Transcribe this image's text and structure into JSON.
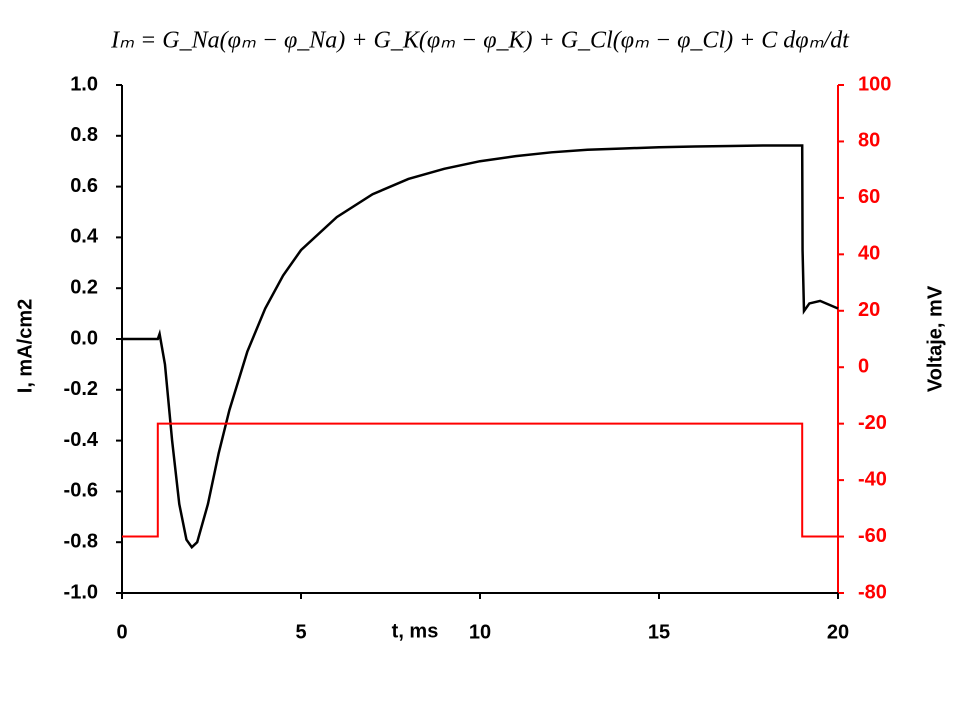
{
  "chart_data": {
    "type": "line",
    "title": "Iₘ = G_Na(φₘ − φ_Na) + G_K(φₘ − φ_K) + G_Cl(φₘ − φ_Cl) + C dφₘ/dt",
    "x_label": "t, ms",
    "y_label": "I, mA/cm2",
    "y2_label": "Voltaje, mV",
    "xlim": [
      0,
      20
    ],
    "xticks": [
      0,
      5,
      10,
      15,
      20
    ],
    "ylim": [
      -1,
      1
    ],
    "yticks": [
      {
        "value": -1,
        "label": "-1.0"
      },
      -0.8,
      -0.6,
      -0.4,
      -0.2,
      {
        "value": 0,
        "label": "0.0"
      },
      0.2,
      0.4,
      0.6,
      0.8,
      {
        "value": 1,
        "label": "1.0"
      }
    ],
    "y2lim": [
      -80,
      100
    ],
    "y2ticks": [
      -80,
      -60,
      -40,
      -20,
      0,
      20,
      40,
      60,
      80,
      100
    ],
    "y_axis_color": "#000000",
    "y2_axis_color": "#ff0000",
    "series": [
      {
        "name": "I",
        "color": "#000000",
        "x": [
          0,
          0.5,
          1.0,
          1.05,
          1.2,
          1.4,
          1.6,
          1.8,
          1.95,
          2.1,
          2.4,
          2.7,
          3.0,
          3.5,
          4,
          4.5,
          5,
          6,
          7,
          8,
          9,
          10,
          11,
          12,
          13,
          14,
          15,
          16,
          17,
          18,
          19,
          19.01,
          19.05,
          19.2,
          19.5,
          20
        ],
        "values": [
          0,
          0,
          0,
          0.02,
          -0.1,
          -0.4,
          -0.65,
          -0.79,
          -0.82,
          -0.8,
          -0.65,
          -0.45,
          -0.28,
          -0.05,
          0.12,
          0.25,
          0.35,
          0.48,
          0.57,
          0.63,
          0.67,
          0.7,
          0.72,
          0.735,
          0.745,
          0.75,
          0.755,
          0.758,
          0.76,
          0.762,
          0.762,
          0.35,
          0.11,
          0.14,
          0.15,
          0.12
        ]
      },
      {
        "name": "V",
        "color": "#ff0000",
        "axis": "y2",
        "x": [
          0,
          1,
          1,
          19,
          19,
          20
        ],
        "values": [
          -60,
          -60,
          -20,
          -20,
          -60,
          -60
        ]
      }
    ]
  }
}
